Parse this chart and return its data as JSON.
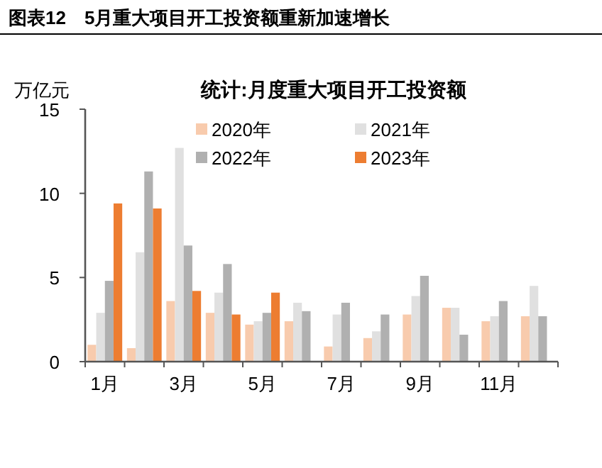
{
  "chart_data": {
    "type": "bar",
    "title": "图表12　5月重大项目开工投资额重新加速增长",
    "subtitle": "统计:月度重大项目开工投资额",
    "ylabel": "万亿元",
    "categories": [
      "1月",
      null,
      "3月",
      null,
      "5月",
      null,
      "7月",
      null,
      "9月",
      null,
      "11月",
      null
    ],
    "series": [
      {
        "name": "2020年",
        "color": "#f8cbad",
        "values": [
          1.0,
          0.8,
          3.6,
          2.9,
          2.2,
          2.4,
          0.9,
          1.4,
          2.8,
          3.2,
          2.4,
          2.7
        ]
      },
      {
        "name": "2021年",
        "color": "#e0e0e0",
        "values": [
          2.9,
          6.5,
          12.7,
          4.1,
          2.4,
          3.5,
          2.8,
          1.8,
          3.9,
          3.2,
          2.7,
          4.5
        ]
      },
      {
        "name": "2022年",
        "color": "#b0b0b0",
        "values": [
          4.8,
          11.3,
          6.9,
          5.8,
          2.9,
          3.0,
          3.5,
          2.8,
          5.1,
          1.6,
          3.6,
          2.7
        ]
      },
      {
        "name": "2023年",
        "color": "#ed7d31",
        "values": [
          9.4,
          9.1,
          4.2,
          2.8,
          4.1,
          null,
          null,
          null,
          null,
          null,
          null,
          null
        ]
      }
    ],
    "ylim": [
      0,
      15
    ],
    "yticks": [
      0,
      5,
      10,
      15
    ],
    "grid": false,
    "legend": "top right"
  }
}
